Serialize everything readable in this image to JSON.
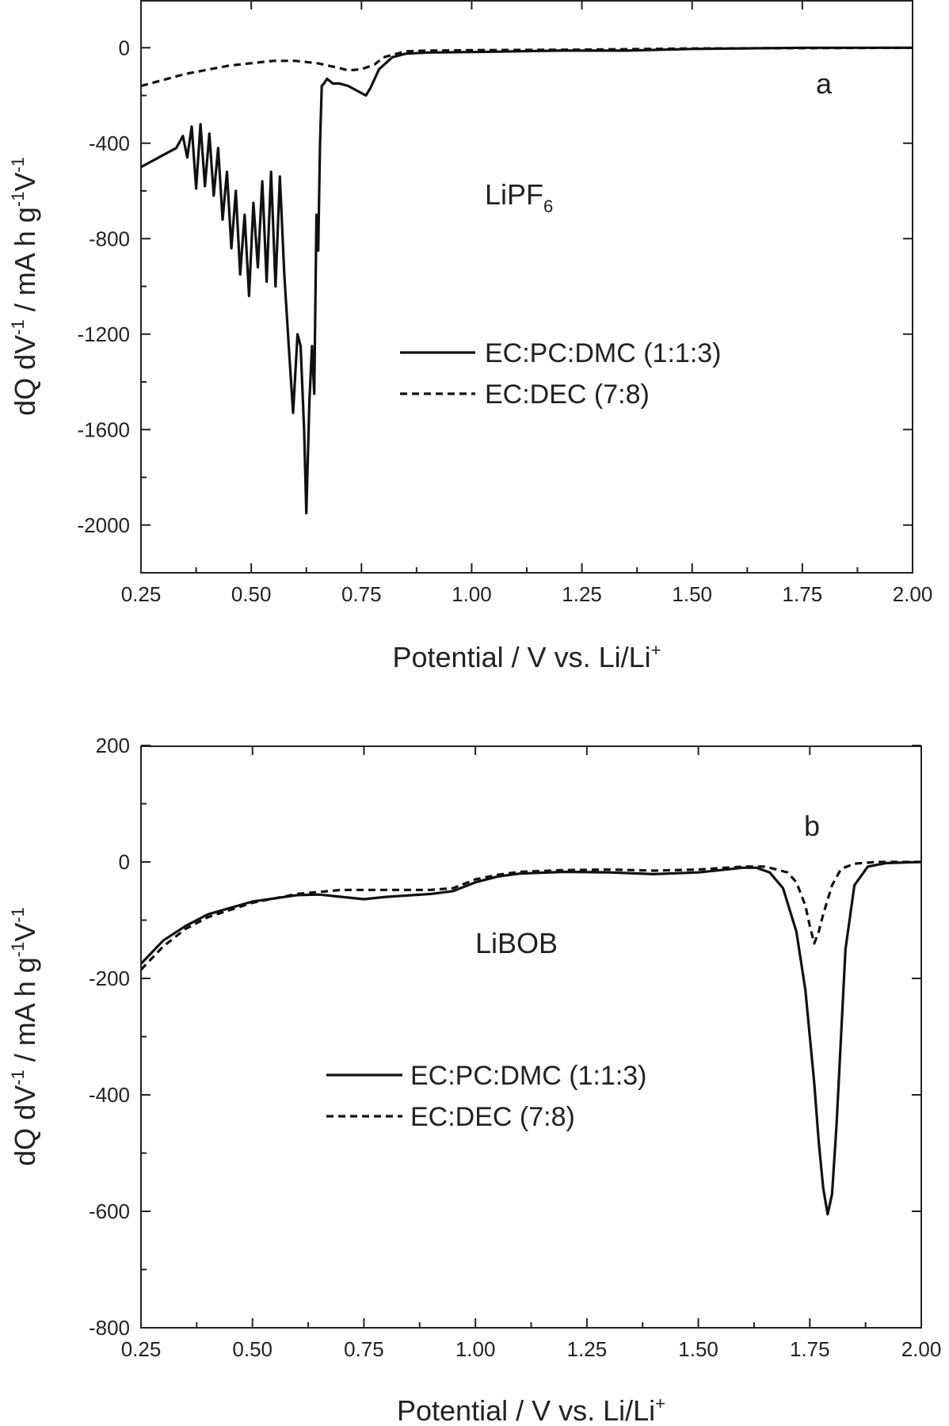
{
  "chart_data": [
    {
      "type": "line",
      "panel_label": "a",
      "annotation": "LiPF",
      "annotation_sub": "6",
      "xlabel": "Potential / V vs. Li/Li",
      "xlabel_sup": "+",
      "ylabel_parts": [
        "dQ dV",
        "-1",
        " / mA h g",
        "-1",
        "V",
        "-1"
      ],
      "xlim": [
        0.25,
        2.0
      ],
      "ylim": [
        -2200,
        200
      ],
      "x_ticks": [
        0.25,
        0.5,
        0.75,
        1.0,
        1.25,
        1.5,
        1.75,
        2.0
      ],
      "x_tick_labels": [
        "0.25",
        "0.50",
        "0.75",
        "1.00",
        "1.25",
        "1.50",
        "1.75",
        "2.00"
      ],
      "y_ticks": [
        0,
        -400,
        -800,
        -1200,
        -1600,
        -2000
      ],
      "y_tick_labels": [
        "0",
        "-400",
        "-800",
        "-1200",
        "-1600",
        "-2000"
      ],
      "legend": [
        "EC:PC:DMC (1:1:3)",
        "EC:DEC (7:8)"
      ],
      "series": [
        {
          "name": "EC:PC:DMC (1:1:3)",
          "style": "solid",
          "x": [
            0.25,
            0.3,
            0.33,
            0.345,
            0.355,
            0.365,
            0.375,
            0.385,
            0.395,
            0.405,
            0.415,
            0.425,
            0.435,
            0.445,
            0.455,
            0.465,
            0.475,
            0.485,
            0.495,
            0.505,
            0.515,
            0.525,
            0.535,
            0.545,
            0.555,
            0.565,
            0.575,
            0.585,
            0.595,
            0.605,
            0.612,
            0.62,
            0.625,
            0.632,
            0.638,
            0.643,
            0.648,
            0.652,
            0.656,
            0.66,
            0.665,
            0.672,
            0.685,
            0.7,
            0.72,
            0.74,
            0.76,
            0.77,
            0.79,
            0.82,
            0.85,
            0.9,
            1.0,
            1.2,
            1.35,
            1.5,
            1.75,
            2.0
          ],
          "y": [
            -500,
            -450,
            -420,
            -370,
            -460,
            -330,
            -590,
            -320,
            -580,
            -360,
            -620,
            -420,
            -720,
            -520,
            -840,
            -600,
            -950,
            -700,
            -1040,
            -650,
            -920,
            -560,
            -980,
            -520,
            -1000,
            -540,
            -950,
            -1250,
            -1530,
            -1200,
            -1250,
            -1600,
            -1950,
            -1480,
            -1250,
            -1450,
            -700,
            -850,
            -400,
            -160,
            -150,
            -130,
            -150,
            -150,
            -160,
            -180,
            -200,
            -170,
            -90,
            -40,
            -25,
            -20,
            -18,
            -12,
            -12,
            -5,
            0,
            0
          ]
        },
        {
          "name": "EC:DEC (7:8)",
          "style": "dashed",
          "x": [
            0.25,
            0.35,
            0.45,
            0.55,
            0.6,
            0.65,
            0.7,
            0.72,
            0.75,
            0.78,
            0.8,
            0.85,
            0.9,
            1.0,
            1.25,
            1.5,
            2.0
          ],
          "y": [
            -160,
            -110,
            -75,
            -55,
            -55,
            -65,
            -85,
            -95,
            -90,
            -70,
            -40,
            -15,
            -12,
            -10,
            -8,
            -3,
            0
          ]
        }
      ]
    },
    {
      "type": "line",
      "panel_label": "b",
      "annotation": "LiBOB",
      "xlabel": "Potential / V vs. Li/Li",
      "xlabel_sup": "+",
      "ylabel_parts": [
        "dQ dV",
        "-1",
        " / mA h g",
        "-1",
        "V",
        "-1"
      ],
      "xlim": [
        0.25,
        2.0
      ],
      "ylim": [
        -800,
        200
      ],
      "x_ticks": [
        0.25,
        0.5,
        0.75,
        1.0,
        1.25,
        1.5,
        1.75,
        2.0
      ],
      "x_tick_labels": [
        "0.25",
        "0.50",
        "0.75",
        "1.00",
        "1.25",
        "1.50",
        "1.75",
        "2.00"
      ],
      "y_ticks": [
        200,
        0,
        -200,
        -400,
        -600,
        -800
      ],
      "y_tick_labels": [
        "200",
        "0",
        "-200",
        "-400",
        "-600",
        "-800"
      ],
      "legend": [
        "EC:PC:DMC (1:1:3)",
        "EC:DEC (7:8)"
      ],
      "series": [
        {
          "name": "EC:PC:DMC (1:1:3)",
          "style": "solid",
          "x": [
            0.25,
            0.3,
            0.35,
            0.4,
            0.5,
            0.6,
            0.65,
            0.7,
            0.75,
            0.8,
            0.9,
            0.95,
            1.0,
            1.05,
            1.1,
            1.2,
            1.3,
            1.4,
            1.5,
            1.55,
            1.6,
            1.63,
            1.66,
            1.69,
            1.72,
            1.74,
            1.76,
            1.77,
            1.78,
            1.79,
            1.8,
            1.81,
            1.82,
            1.83,
            1.85,
            1.88,
            1.92,
            2.0
          ],
          "y": [
            -175,
            -135,
            -110,
            -90,
            -68,
            -57,
            -56,
            -60,
            -64,
            -60,
            -55,
            -50,
            -35,
            -25,
            -20,
            -17,
            -18,
            -21,
            -18,
            -14,
            -10,
            -10,
            -18,
            -45,
            -120,
            -220,
            -380,
            -480,
            -560,
            -605,
            -570,
            -450,
            -300,
            -150,
            -40,
            -8,
            -2,
            0
          ]
        },
        {
          "name": "EC:DEC (7:8)",
          "style": "dashed",
          "x": [
            0.25,
            0.3,
            0.35,
            0.4,
            0.5,
            0.6,
            0.7,
            0.8,
            0.9,
            0.95,
            1.0,
            1.05,
            1.1,
            1.2,
            1.3,
            1.4,
            1.5,
            1.6,
            1.65,
            1.7,
            1.72,
            1.74,
            1.75,
            1.76,
            1.77,
            1.78,
            1.8,
            1.82,
            1.85,
            1.9,
            2.0
          ],
          "y": [
            -185,
            -145,
            -115,
            -95,
            -70,
            -55,
            -48,
            -48,
            -48,
            -45,
            -30,
            -22,
            -17,
            -14,
            -13,
            -15,
            -13,
            -8,
            -8,
            -18,
            -35,
            -75,
            -110,
            -140,
            -120,
            -90,
            -40,
            -12,
            -3,
            0,
            0
          ]
        }
      ]
    }
  ]
}
